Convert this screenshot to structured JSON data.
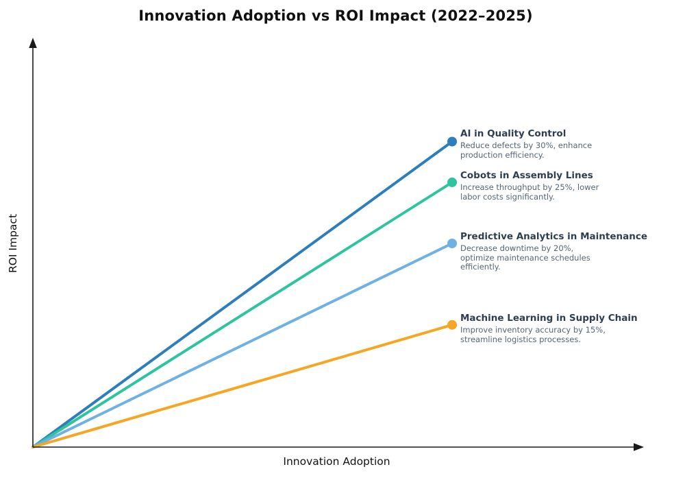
{
  "page": {
    "background": "#ffffff"
  },
  "colors": {
    "title_text": "#111111",
    "axis_lines": "#1a1a1a",
    "annotation_heading": "#2C3E50",
    "annotation_description": "#566573"
  },
  "chart_data": {
    "type": "line",
    "title": "Innovation Adoption vs ROI Impact (2022–2025)",
    "xlabel": "Innovation Adoption",
    "ylabel": "ROI Impact",
    "x_range": [
      0,
      1
    ],
    "y_range": [
      0,
      1
    ],
    "grid": false,
    "ticks": "none",
    "axes_style": "arrowed",
    "legend": "annotations-right-of-endpoints",
    "series": [
      {
        "name": "AI in Quality Control",
        "description": "Reduce defects by 30%, enhance production efficiency.",
        "color": "#2E7EBC",
        "x": [
          0,
          0.69
        ],
        "y": [
          0,
          0.75
        ]
      },
      {
        "name": "Cobots in Assembly Lines",
        "description": "Increase throughput by 25%, lower labor costs significantly.",
        "color": "#2EC4A0",
        "x": [
          0,
          0.69
        ],
        "y": [
          0,
          0.65
        ]
      },
      {
        "name": "Predictive Analytics in Maintenance",
        "description": "Decrease downtime by 20%, optimize maintenance schedules efficiently.",
        "color": "#6EB1E2",
        "x": [
          0,
          0.69
        ],
        "y": [
          0,
          0.5
        ]
      },
      {
        "name": "Machine Learning in Supply Chain",
        "description": "Improve inventory accuracy by 15%, streamline logistics processes.",
        "color": "#F5A623",
        "x": [
          0,
          0.69
        ],
        "y": [
          0,
          0.3
        ]
      }
    ]
  }
}
